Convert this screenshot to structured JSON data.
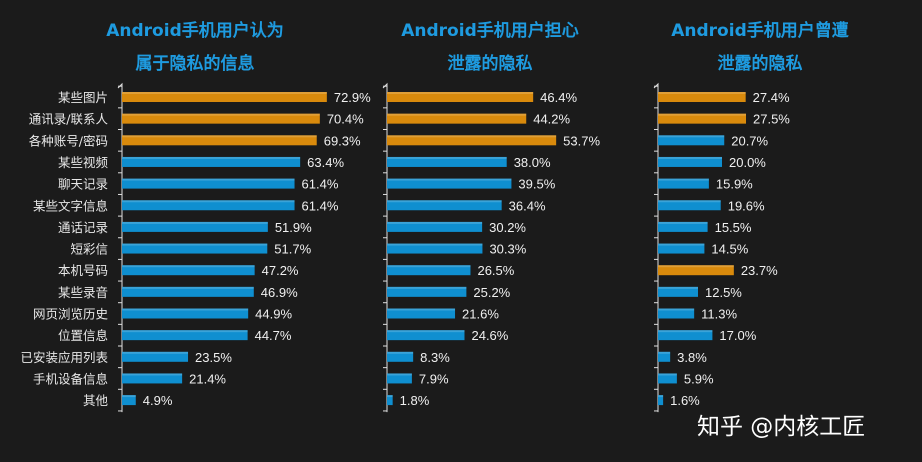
{
  "chart_data": [
    {
      "type": "bar",
      "orientation": "horizontal",
      "title": [
        "Android手机用户认为",
        "属于隐私的信息"
      ],
      "categories": [
        "某些图片",
        "通讯录/联系人",
        "各种账号/密码",
        "某些视频",
        "聊天记录",
        "某些文字信息",
        "通话记录",
        "短彩信",
        "本机号码",
        "某些录音",
        "网页浏览历史",
        "位置信息",
        "已安装应用列表",
        "手机设备信息",
        "其他"
      ],
      "values": [
        72.9,
        70.4,
        69.3,
        63.4,
        61.4,
        61.4,
        51.9,
        51.7,
        47.2,
        46.9,
        44.9,
        44.7,
        23.5,
        21.4,
        4.9
      ],
      "labels": [
        "72.9%",
        "70.4%",
        "69.3%",
        "63.4%",
        "61.4%",
        "61.4%",
        "51.9%",
        "51.7%",
        "47.2%",
        "46.9%",
        "44.9%",
        "44.7%",
        "23.5%",
        "21.4%",
        "4.9%"
      ],
      "highlighted": [
        0,
        1,
        2
      ],
      "unit": "%"
    },
    {
      "type": "bar",
      "orientation": "horizontal",
      "title": [
        "Android手机用户担心",
        "泄露的隐私"
      ],
      "values": [
        46.4,
        44.2,
        53.7,
        38.0,
        39.5,
        36.4,
        30.2,
        30.3,
        26.5,
        25.2,
        21.6,
        24.6,
        8.3,
        7.9,
        1.8
      ],
      "labels": [
        "46.4%",
        "44.2%",
        "53.7%",
        "38.0%",
        "39.5%",
        "36.4%",
        "30.2%",
        "30.3%",
        "26.5%",
        "25.2%",
        "21.6%",
        "24.6%",
        "8.3%",
        "7.9%",
        "1.8%"
      ],
      "highlighted": [
        0,
        1,
        2
      ],
      "unit": "%"
    },
    {
      "type": "bar",
      "orientation": "horizontal",
      "title": [
        "Android手机用户曾遭",
        "泄露的隐私"
      ],
      "values": [
        27.4,
        27.5,
        20.7,
        20.0,
        15.9,
        19.6,
        15.5,
        14.5,
        23.7,
        12.5,
        11.3,
        17.0,
        3.8,
        5.9,
        1.6
      ],
      "labels": [
        "27.4%",
        "27.5%",
        "20.7%",
        "20.0%",
        "15.9%",
        "19.6%",
        "15.5%",
        "14.5%",
        "23.7%",
        "12.5%",
        "11.3%",
        "17.0%",
        "3.8%",
        "5.9%",
        "1.6%"
      ],
      "highlighted": [
        0,
        1,
        8
      ],
      "unit": "%"
    }
  ],
  "colors": {
    "background": "#1b1b1b",
    "title": "#1e9be0",
    "highlight_bar": "#d98a0c",
    "normal_bar": "#0f8fd0"
  },
  "watermark": "知乎 @内核工匠"
}
